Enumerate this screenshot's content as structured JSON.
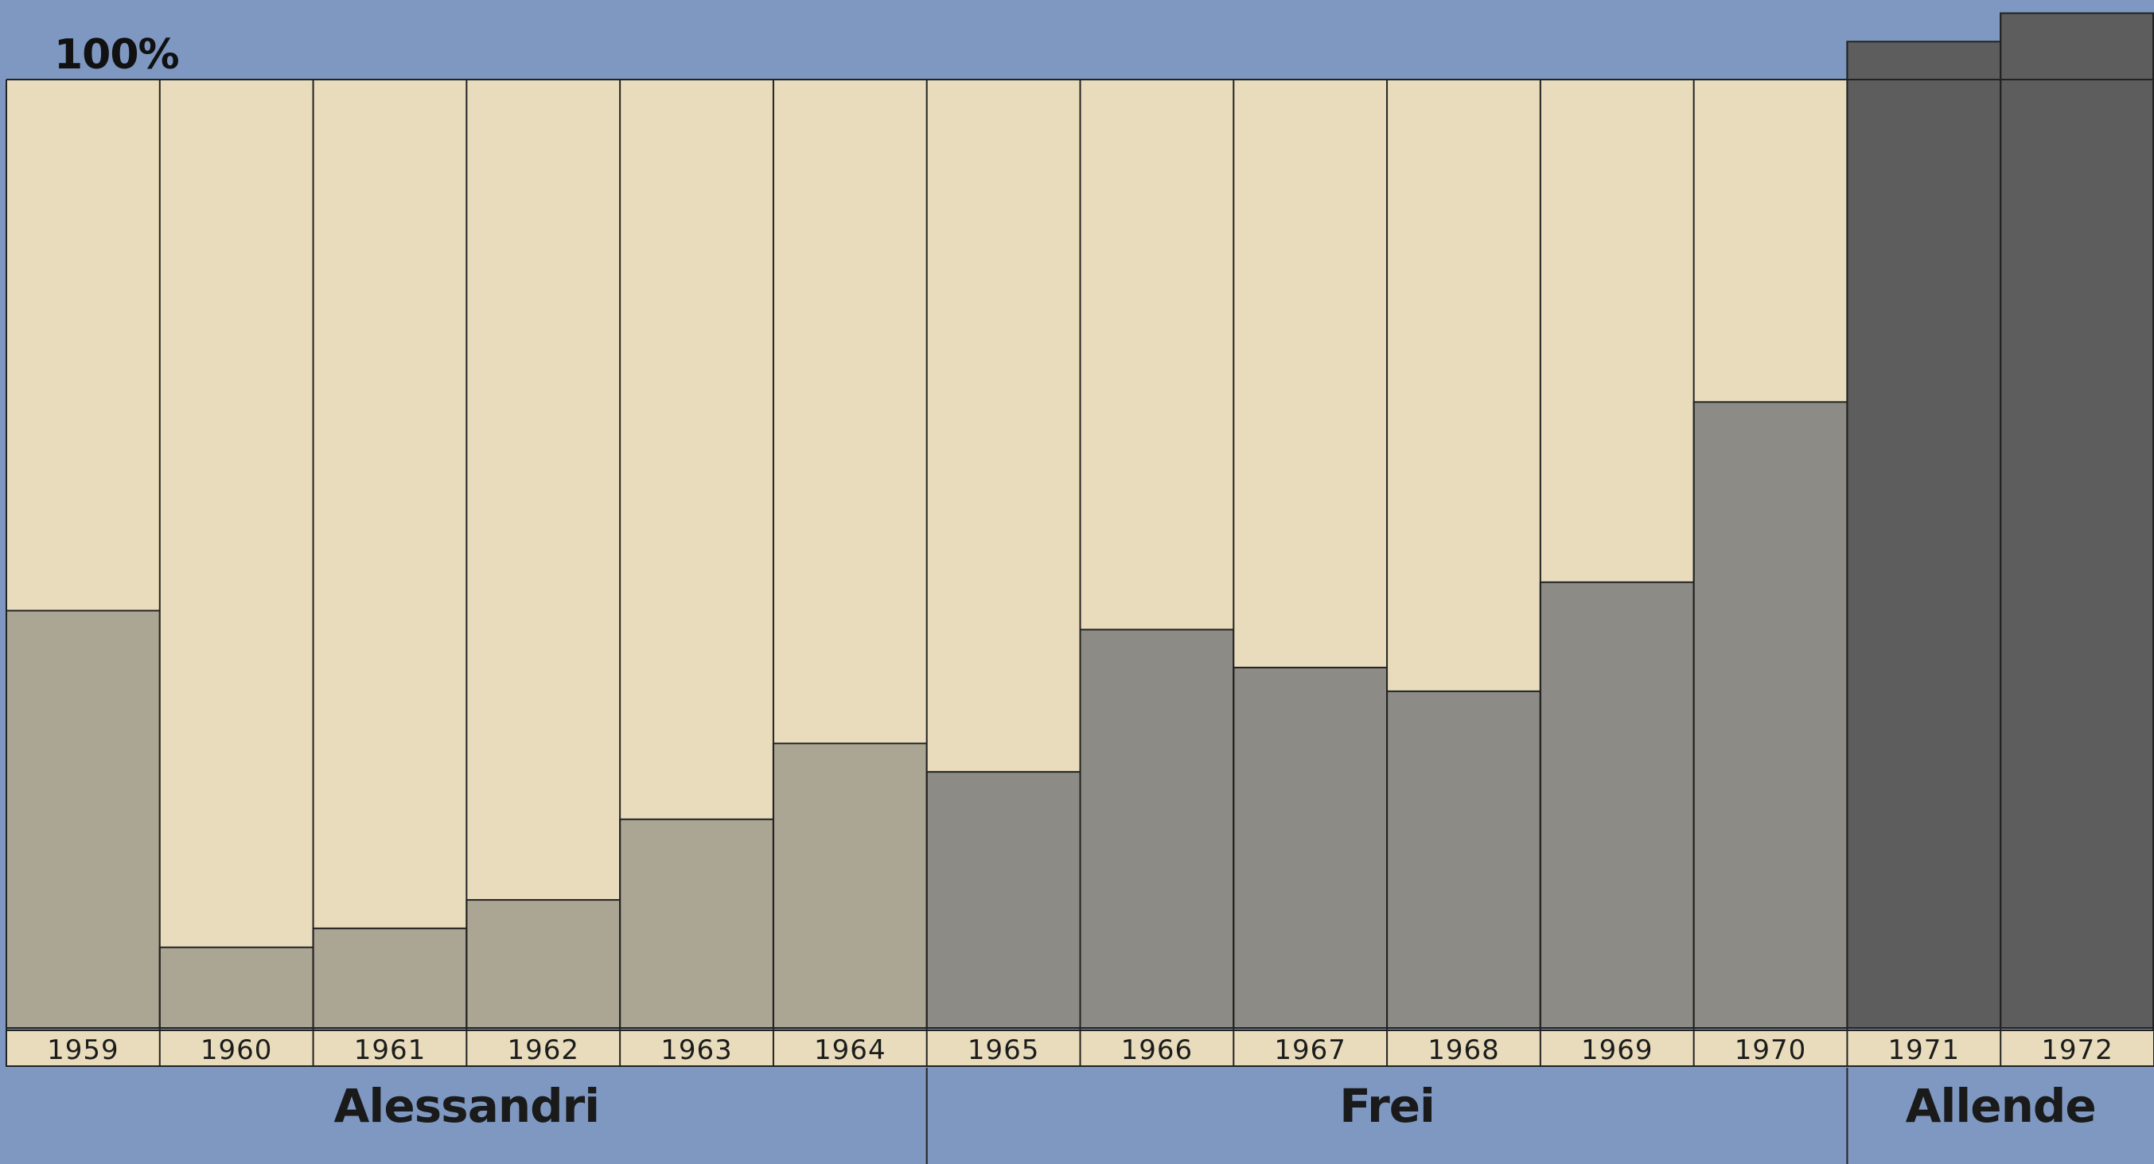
{
  "chart_data": {
    "type": "bar",
    "stacked_share": true,
    "categories": [
      "1959",
      "1960",
      "1961",
      "1962",
      "1963",
      "1964",
      "1965",
      "1966",
      "1967",
      "1968",
      "1969",
      "1970",
      "1971",
      "1972"
    ],
    "values": [
      44,
      8.5,
      10.5,
      13.5,
      22,
      30,
      27,
      42,
      38,
      35.5,
      47,
      66,
      104,
      107
    ],
    "ylim": [
      0,
      110
    ],
    "top_label": "100%",
    "grid": false,
    "administrations": [
      {
        "name": "Alessandri",
        "from": "1959",
        "to": "1964"
      },
      {
        "name": "Frei",
        "from": "1965",
        "to": "1970"
      },
      {
        "name": "Allende",
        "from": "1971",
        "to": "1972"
      }
    ],
    "colors": {
      "background_band": "#7e98c1",
      "remainder": "#e8dcbc",
      "bar_alessandri": "#aba594",
      "bar_frei": "#8c8b86",
      "bar_allende": "#5d5d5e",
      "line": "#222222"
    }
  }
}
